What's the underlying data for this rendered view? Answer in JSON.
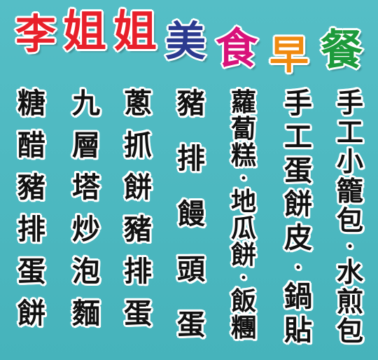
{
  "title": {
    "chars": [
      {
        "text": "李",
        "color": "#e8202a"
      },
      {
        "text": "姐",
        "color": "#e8202a"
      },
      {
        "text": "姐",
        "color": "#e8202a"
      },
      {
        "text": "美",
        "color": "#2b3a8f"
      },
      {
        "text": "食",
        "color": "#d8127a"
      },
      {
        "text": "早",
        "color": "#f08a10"
      },
      {
        "text": "餐",
        "color": "#1d9a3c"
      }
    ]
  },
  "menu": {
    "columns": [
      {
        "name": "糖醋豬排蛋餅",
        "chars": [
          "糖",
          "醋",
          "豬",
          "排",
          "蛋",
          "餅"
        ]
      },
      {
        "name": "九層塔炒泡麵",
        "chars": [
          "九",
          "層",
          "塔",
          "炒",
          "泡",
          "麵"
        ]
      },
      {
        "name": "蔥抓餅豬排蛋",
        "chars": [
          "蔥",
          "抓",
          "餅",
          "豬",
          "排",
          "蛋"
        ]
      },
      {
        "name": "豬排饅頭蛋",
        "chars": [
          "豬",
          "排",
          "饅",
          "頭",
          "蛋"
        ]
      },
      {
        "name": "蘿蔔糕·地瓜餅·飯糰",
        "chars": [
          "蘿",
          "蔔",
          "糕",
          "·",
          "地",
          "瓜",
          "餅",
          "·",
          "飯",
          "糰"
        ]
      },
      {
        "name": "手工蛋餅皮·鍋貼",
        "chars": [
          "手",
          "工",
          "蛋",
          "餅",
          "皮",
          "·",
          "鍋",
          "貼"
        ]
      },
      {
        "name": "手工小籠包·水煎包",
        "chars": [
          "手",
          "工",
          "小",
          "籠",
          "包",
          "·",
          "水",
          "煎",
          "包"
        ]
      }
    ]
  },
  "colors": {
    "background": "#4ab7bf",
    "menu_text": "#111111",
    "outline": "#ffffff"
  }
}
